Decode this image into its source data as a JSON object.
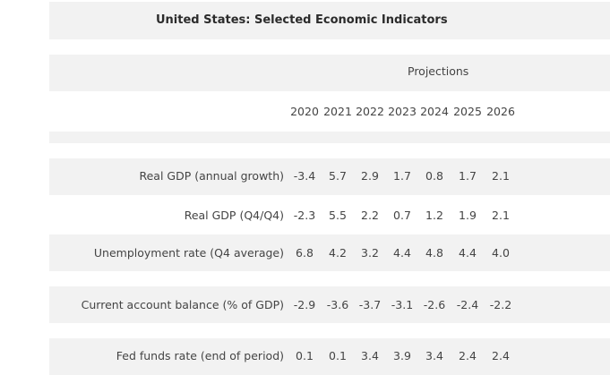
{
  "title": "United States: Selected Economic Indicators",
  "projections_label": "Projections",
  "years": [
    "2020",
    "2021",
    "2022",
    "2023",
    "2024",
    "2025",
    "2026"
  ],
  "rows": [
    {
      "label": "Real GDP (annual growth)",
      "values": [
        "-3.4",
        "5.7",
        "2.9",
        "1.7",
        "0.8",
        "1.7",
        "2.1"
      ]
    },
    {
      "label": "Real GDP (Q4/Q4)",
      "values": [
        "-2.3",
        "5.5",
        "2.2",
        "0.7",
        "1.2",
        "1.9",
        "2.1"
      ]
    },
    {
      "label": "Unemployment rate (Q4 average)",
      "values": [
        "6.8",
        "4.2",
        "3.2",
        "4.4",
        "4.8",
        "4.4",
        "4.0"
      ]
    },
    {
      "label": "Current account balance (% of GDP)",
      "values": [
        "-2.9",
        "-3.6",
        "-3.7",
        "-3.1",
        "-2.6",
        "-2.4",
        "-2.2"
      ]
    },
    {
      "label": "Fed funds rate (end of period)",
      "values": [
        "0.1",
        "0.1",
        "3.4",
        "3.9",
        "3.4",
        "2.4",
        "2.4"
      ]
    }
  ]
}
